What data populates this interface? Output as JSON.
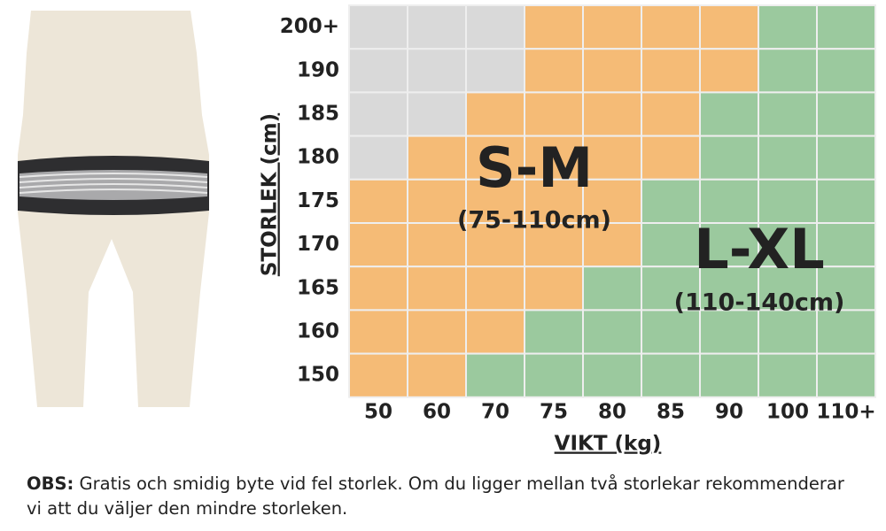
{
  "size_chart": {
    "y_title": "STORLEK (cm)",
    "x_title": "VIKT (kg)",
    "y_labels": [
      "200+",
      "190",
      "185",
      "180",
      "175",
      "170",
      "165",
      "160",
      "150"
    ],
    "x_labels": [
      "50",
      "60",
      "70",
      "75",
      "80",
      "85",
      "90",
      "100",
      "110+"
    ],
    "cell_colors": [
      [
        "#d9d9d9",
        "#d9d9d9",
        "#d9d9d9",
        "#f5bb76",
        "#f5bb76",
        "#f5bb76",
        "#f5bb76",
        "#9bc99e",
        "#9bc99e"
      ],
      [
        "#d9d9d9",
        "#d9d9d9",
        "#d9d9d9",
        "#f5bb76",
        "#f5bb76",
        "#f5bb76",
        "#f5bb76",
        "#9bc99e",
        "#9bc99e"
      ],
      [
        "#d9d9d9",
        "#d9d9d9",
        "#f5bb76",
        "#f5bb76",
        "#f5bb76",
        "#f5bb76",
        "#9bc99e",
        "#9bc99e",
        "#9bc99e"
      ],
      [
        "#d9d9d9",
        "#f5bb76",
        "#f5bb76",
        "#f5bb76",
        "#f5bb76",
        "#f5bb76",
        "#9bc99e",
        "#9bc99e",
        "#9bc99e"
      ],
      [
        "#f5bb76",
        "#f5bb76",
        "#f5bb76",
        "#f5bb76",
        "#f5bb76",
        "#9bc99e",
        "#9bc99e",
        "#9bc99e",
        "#9bc99e"
      ],
      [
        "#f5bb76",
        "#f5bb76",
        "#f5bb76",
        "#f5bb76",
        "#f5bb76",
        "#9bc99e",
        "#9bc99e",
        "#9bc99e",
        "#9bc99e"
      ],
      [
        "#f5bb76",
        "#f5bb76",
        "#f5bb76",
        "#f5bb76",
        "#9bc99e",
        "#9bc99e",
        "#9bc99e",
        "#9bc99e",
        "#9bc99e"
      ],
      [
        "#f5bb76",
        "#f5bb76",
        "#f5bb76",
        "#9bc99e",
        "#9bc99e",
        "#9bc99e",
        "#9bc99e",
        "#9bc99e",
        "#9bc99e"
      ],
      [
        "#f5bb76",
        "#f5bb76",
        "#9bc99e",
        "#9bc99e",
        "#9bc99e",
        "#9bc99e",
        "#9bc99e",
        "#9bc99e",
        "#9bc99e"
      ]
    ],
    "zones": [
      {
        "label": "S-M",
        "range": "(75-110cm)"
      },
      {
        "label": "L-XL",
        "range": "(110-140cm)"
      }
    ]
  },
  "note": {
    "bold": "OBS:",
    "text": "Gratis och smidig byte vid fel storlek. Om du ligger mellan två storlekar rekommenderar vi att du väljer den mindre storleken."
  }
}
